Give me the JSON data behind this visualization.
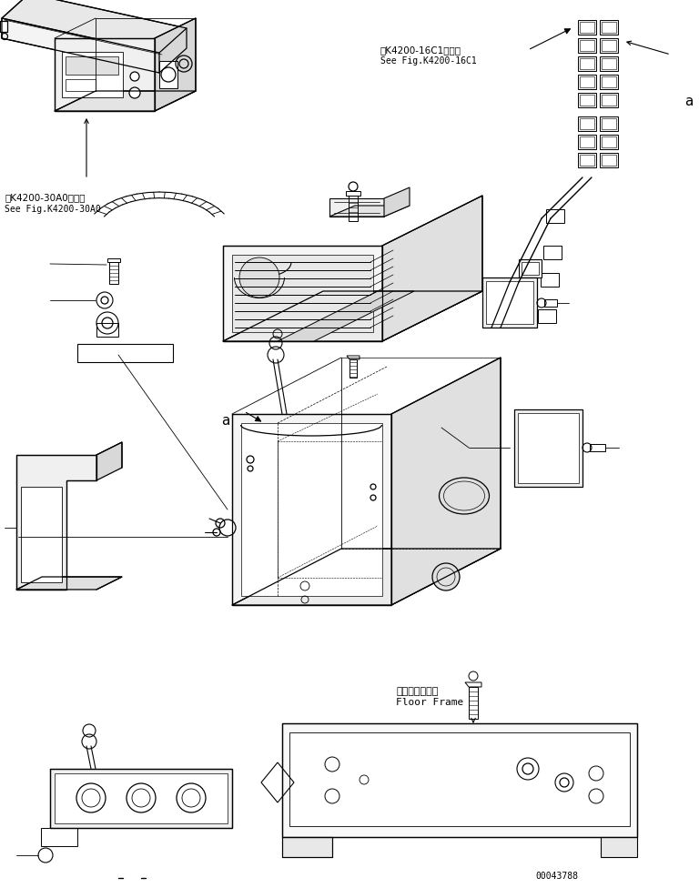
{
  "bg_color": "#ffffff",
  "line_color": "#000000",
  "text_color": "#000000",
  "fig_width": 7.68,
  "fig_height": 9.76,
  "part_number": "00043788",
  "ref_text_1_jp": "第K4200-16C1図参照",
  "ref_text_1_en": "See Fig.K4200-16C1",
  "ref_text_2_jp": "第K4200-30A0図参照",
  "ref_text_2_en": "See Fig.K4200-30A0",
  "label_a": "a",
  "floor_frame_jp": "フロアフレーム",
  "floor_frame_en": "Floor Frame"
}
